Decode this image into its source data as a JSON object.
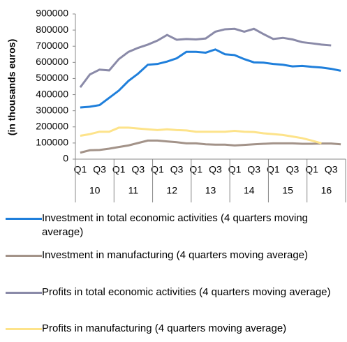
{
  "chart_data": {
    "type": "line",
    "y_label": "(in thousands euros)",
    "categories": [
      "Q1",
      null,
      "Q3",
      null,
      "Q1",
      null,
      "Q3",
      null,
      "Q1",
      null,
      "Q3",
      null,
      "Q1",
      null,
      "Q3",
      null,
      "Q1",
      null,
      "Q3",
      null,
      "Q1",
      null,
      "Q3",
      null,
      "Q1",
      null,
      "Q3",
      null
    ],
    "groups": [
      "10",
      "11",
      "12",
      "13",
      "14",
      "15",
      "16"
    ],
    "ylim": [
      0,
      900000
    ],
    "yticks": [
      0,
      100000,
      200000,
      300000,
      400000,
      500000,
      600000,
      700000,
      800000,
      900000
    ],
    "series": [
      {
        "name": "Investment in total economic activities (4 quarters moving average)",
        "color": "#1f7fdb",
        "values": [
          320000,
          325000,
          335000,
          380000,
          425000,
          485000,
          530000,
          585000,
          590000,
          605000,
          625000,
          665000,
          665000,
          660000,
          680000,
          650000,
          645000,
          620000,
          600000,
          598000,
          590000,
          585000,
          575000,
          578000,
          572000,
          568000,
          560000,
          548000
        ]
      },
      {
        "name": "Investment in manufacturing (4 quarters moving average)",
        "color": "#a39389",
        "values": [
          40000,
          55000,
          57000,
          65000,
          75000,
          85000,
          100000,
          115000,
          115000,
          110000,
          105000,
          98000,
          98000,
          92000,
          90000,
          90000,
          85000,
          88000,
          92000,
          95000,
          98000,
          98000,
          98000,
          95000,
          95000,
          97000,
          97000,
          92000
        ]
      },
      {
        "name": "Profits in total economic activities (4 quarters moving average)",
        "color": "#8a8aa8",
        "values": [
          445000,
          525000,
          555000,
          550000,
          620000,
          665000,
          690000,
          710000,
          735000,
          770000,
          740000,
          745000,
          742000,
          748000,
          790000,
          805000,
          808000,
          790000,
          808000,
          775000,
          745000,
          752000,
          742000,
          725000,
          718000,
          710000,
          705000,
          null
        ]
      },
      {
        "name": "Profits in manufacturing (4 quarters moving average)",
        "color": "#fde38a",
        "values": [
          145000,
          155000,
          170000,
          170000,
          195000,
          195000,
          190000,
          185000,
          180000,
          185000,
          180000,
          178000,
          170000,
          170000,
          170000,
          170000,
          175000,
          170000,
          168000,
          160000,
          155000,
          150000,
          140000,
          130000,
          115000,
          98000,
          null,
          null
        ]
      }
    ]
  }
}
